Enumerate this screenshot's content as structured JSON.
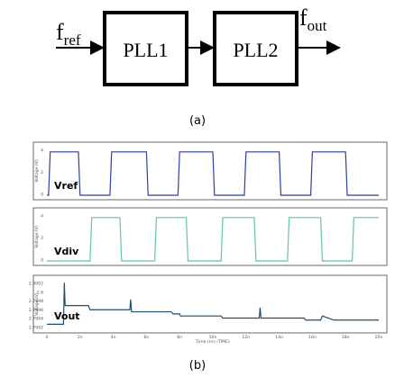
{
  "block_diagram": {
    "input_label": {
      "main": "f",
      "sub": "ref"
    },
    "blocks": [
      "PLL1",
      "PLL2"
    ],
    "output_label": {
      "main": "f",
      "sub": "out"
    },
    "caption": "(a)"
  },
  "waveforms": {
    "caption": "(b)",
    "x_axis": {
      "ticks": [
        "0",
        "2n",
        "4n",
        "6n",
        "8n",
        "10n",
        "12n",
        "14n",
        "16n",
        "18n",
        "20n"
      ],
      "label": "Time (ns) (TIME)"
    },
    "panels": [
      {
        "name": "Vref",
        "color": "#2f3f9e",
        "y_ticks": [
          "4",
          "2",
          "0"
        ],
        "y_label": "Voltage (V)"
      },
      {
        "name": "Vdiv",
        "color": "#5fc6a8",
        "y_ticks": [
          "4",
          "2",
          "0"
        ],
        "y_label": "Voltage (V)"
      },
      {
        "name": "Vout",
        "color": "#1f4e6e",
        "y_ticks": [
          "2.8002",
          "2.8",
          "2.7998",
          "2.7996",
          "2.7994",
          "2.7992"
        ],
        "y_label": "Voltage (V)"
      }
    ]
  },
  "chart_data": [
    {
      "type": "line",
      "name": "Vref",
      "x": [
        0,
        0.1,
        0.2,
        1.9,
        2.0,
        3.8,
        3.9,
        6.0,
        6.1,
        7.9,
        8.0,
        10.0,
        10.1,
        11.9,
        12.0,
        14.0,
        14.1,
        15.9,
        16.0,
        18.0,
        18.1,
        19.8,
        20.0
      ],
      "y": [
        0,
        0,
        5,
        5,
        0,
        0,
        5,
        5,
        0,
        0,
        5,
        5,
        0,
        0,
        5,
        5,
        0,
        0,
        5,
        5,
        0,
        0,
        0
      ],
      "ylim": [
        0,
        5.5
      ]
    },
    {
      "type": "line",
      "name": "Vdiv",
      "x": [
        0,
        2.6,
        2.7,
        4.4,
        4.5,
        6.5,
        6.6,
        8.4,
        8.5,
        10.5,
        10.6,
        12.5,
        12.6,
        14.5,
        14.6,
        16.5,
        16.6,
        18.4,
        18.5,
        19.8,
        20.0
      ],
      "y": [
        0,
        0,
        5,
        5,
        0,
        0,
        5,
        5,
        0,
        0,
        5,
        5,
        0,
        0,
        5,
        5,
        0,
        0,
        5,
        5,
        5
      ],
      "ylim": [
        0,
        5.5
      ]
    },
    {
      "type": "line",
      "name": "Vout",
      "x": [
        0,
        1.0,
        1.05,
        1.1,
        2.5,
        2.6,
        5.0,
        5.05,
        5.1,
        7.5,
        7.6,
        8.0,
        8.05,
        10.5,
        10.6,
        12.8,
        12.85,
        12.9,
        15.5,
        15.6,
        16.5,
        16.6,
        17.3,
        19.8,
        20.0
      ],
      "y": [
        2.7992,
        2.7992,
        2.8002,
        2.79965,
        2.79965,
        2.79955,
        2.79955,
        2.7998,
        2.7995,
        2.7995,
        2.79945,
        2.79945,
        2.7994,
        2.7994,
        2.79935,
        2.79935,
        2.7996,
        2.79935,
        2.79935,
        2.7993,
        2.7993,
        2.7994,
        2.7993,
        2.7993,
        2.7993
      ],
      "ylim": [
        2.7991,
        2.80025
      ]
    }
  ]
}
